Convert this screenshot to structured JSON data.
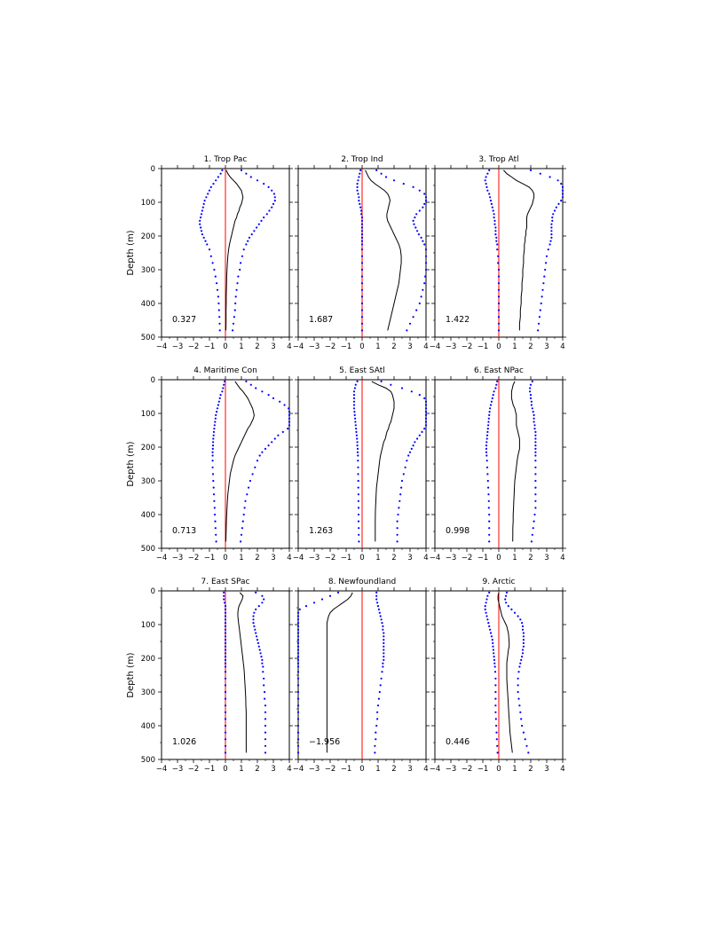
{
  "chart_data": {
    "type": "line",
    "ylabel": "Depth (m)",
    "xlim": [
      -4,
      4
    ],
    "ylim": [
      0,
      500
    ],
    "y_inverted": true,
    "x_ticks": [
      -4,
      -3,
      -2,
      -1,
      0,
      1,
      2,
      3,
      4
    ],
    "y_ticks": [
      0,
      100,
      200,
      300,
      400,
      500
    ],
    "depth": [
      5,
      15,
      25,
      35,
      45,
      55,
      65,
      75,
      85,
      95,
      105,
      115,
      125,
      135,
      145,
      155,
      165,
      175,
      185,
      195,
      205,
      215,
      225,
      240,
      260,
      280,
      300,
      320,
      340,
      360,
      380,
      400,
      420,
      440,
      460,
      480
    ],
    "panels": [
      {
        "title": "1. Trop Pac",
        "annotation": "0.327",
        "mean": [
          0.05,
          0.15,
          0.3,
          0.5,
          0.7,
          0.85,
          1.0,
          1.05,
          1.1,
          1.05,
          1.0,
          0.9,
          0.85,
          0.75,
          0.7,
          0.6,
          0.55,
          0.5,
          0.45,
          0.4,
          0.35,
          0.3,
          0.25,
          0.2,
          0.15,
          0.12,
          0.1,
          0.08,
          0.07,
          0.06,
          0.05,
          0.05,
          0.04,
          0.04,
          0.04,
          0.03
        ],
        "upper": [
          1.0,
          1.3,
          1.6,
          2.0,
          2.4,
          2.7,
          2.9,
          3.05,
          3.1,
          3.1,
          3.0,
          2.9,
          2.75,
          2.6,
          2.4,
          2.25,
          2.1,
          1.95,
          1.8,
          1.65,
          1.5,
          1.4,
          1.3,
          1.15,
          1.05,
          0.95,
          0.9,
          0.8,
          0.75,
          0.7,
          0.65,
          0.62,
          0.6,
          0.55,
          0.5,
          0.45
        ],
        "lower": [
          -0.2,
          -0.3,
          -0.45,
          -0.6,
          -0.75,
          -0.9,
          -1.0,
          -1.1,
          -1.2,
          -1.3,
          -1.35,
          -1.4,
          -1.45,
          -1.5,
          -1.55,
          -1.6,
          -1.6,
          -1.55,
          -1.5,
          -1.45,
          -1.35,
          -1.25,
          -1.15,
          -1.0,
          -0.9,
          -0.8,
          -0.7,
          -0.62,
          -0.55,
          -0.5,
          -0.45,
          -0.42,
          -0.4,
          -0.38,
          -0.36,
          -0.35
        ]
      },
      {
        "title": "2. Trop Ind",
        "annotation": "1.687",
        "mean": [
          0.2,
          0.3,
          0.4,
          0.55,
          0.8,
          1.1,
          1.4,
          1.6,
          1.7,
          1.75,
          1.7,
          1.65,
          1.6,
          1.55,
          1.55,
          1.6,
          1.7,
          1.8,
          1.9,
          2.0,
          2.1,
          2.2,
          2.3,
          2.4,
          2.45,
          2.45,
          2.4,
          2.35,
          2.3,
          2.2,
          2.1,
          2.0,
          1.9,
          1.8,
          1.7,
          1.6
        ],
        "upper": [
          0.9,
          1.2,
          1.5,
          2.0,
          2.6,
          3.2,
          3.6,
          3.9,
          4.0,
          4.0,
          3.9,
          3.8,
          3.6,
          3.4,
          3.3,
          3.2,
          3.25,
          3.35,
          3.45,
          3.55,
          3.7,
          3.8,
          3.9,
          4.0,
          4.0,
          4.0,
          4.0,
          3.95,
          3.9,
          3.8,
          3.7,
          3.6,
          3.4,
          3.2,
          3.0,
          2.8
        ],
        "lower": [
          -0.1,
          -0.15,
          -0.2,
          -0.25,
          -0.3,
          -0.3,
          -0.3,
          -0.25,
          -0.2,
          -0.2,
          -0.15,
          -0.1,
          -0.05,
          -0.05,
          0,
          0,
          0,
          0,
          0,
          0,
          0,
          0,
          0,
          0,
          0,
          0,
          0,
          0,
          0,
          0,
          0,
          0,
          0,
          0,
          0,
          0
        ]
      },
      {
        "title": "3. Trop Atl",
        "annotation": "1.422",
        "mean": [
          0.3,
          0.5,
          0.8,
          1.1,
          1.5,
          1.9,
          2.1,
          2.2,
          2.2,
          2.15,
          2.1,
          2.0,
          1.9,
          1.8,
          1.75,
          1.75,
          1.75,
          1.75,
          1.7,
          1.7,
          1.65,
          1.65,
          1.6,
          1.6,
          1.55,
          1.55,
          1.5,
          1.5,
          1.45,
          1.45,
          1.4,
          1.4,
          1.35,
          1.35,
          1.3,
          1.3
        ],
        "upper": [
          2.0,
          2.6,
          3.2,
          3.7,
          3.9,
          4.0,
          4.0,
          4.0,
          4.0,
          3.9,
          3.75,
          3.6,
          3.5,
          3.4,
          3.35,
          3.35,
          3.3,
          3.3,
          3.3,
          3.3,
          3.3,
          3.25,
          3.2,
          3.1,
          3.0,
          2.95,
          2.9,
          2.85,
          2.8,
          2.75,
          2.7,
          2.65,
          2.6,
          2.55,
          2.5,
          2.45
        ],
        "lower": [
          -0.6,
          -0.7,
          -0.8,
          -0.85,
          -0.8,
          -0.75,
          -0.7,
          -0.6,
          -0.55,
          -0.5,
          -0.45,
          -0.4,
          -0.35,
          -0.3,
          -0.3,
          -0.25,
          -0.25,
          -0.2,
          -0.2,
          -0.2,
          -0.15,
          -0.15,
          -0.1,
          -0.1,
          -0.05,
          -0.05,
          0,
          0,
          0,
          0,
          0,
          0,
          0,
          0,
          0,
          0
        ]
      },
      {
        "title": "4. Maritime Con",
        "annotation": "0.713",
        "mean": [
          0.6,
          0.75,
          0.9,
          1.1,
          1.25,
          1.4,
          1.5,
          1.6,
          1.7,
          1.75,
          1.8,
          1.75,
          1.65,
          1.55,
          1.4,
          1.3,
          1.2,
          1.1,
          1.0,
          0.9,
          0.8,
          0.7,
          0.6,
          0.5,
          0.4,
          0.3,
          0.25,
          0.2,
          0.15,
          0.12,
          0.1,
          0.08,
          0.06,
          0.05,
          0.04,
          0.03
        ],
        "upper": [
          1.3,
          1.6,
          1.9,
          2.3,
          2.7,
          3.0,
          3.4,
          3.7,
          3.95,
          4.0,
          4.0,
          4.0,
          4.0,
          4.0,
          3.9,
          3.6,
          3.3,
          3.1,
          2.9,
          2.7,
          2.5,
          2.3,
          2.15,
          2.0,
          1.85,
          1.7,
          1.55,
          1.45,
          1.35,
          1.25,
          1.2,
          1.15,
          1.1,
          1.05,
          1.0,
          0.95
        ],
        "lower": [
          -0.05,
          -0.1,
          -0.15,
          -0.2,
          -0.3,
          -0.35,
          -0.4,
          -0.45,
          -0.5,
          -0.55,
          -0.6,
          -0.62,
          -0.65,
          -0.68,
          -0.7,
          -0.72,
          -0.74,
          -0.76,
          -0.77,
          -0.78,
          -0.79,
          -0.8,
          -0.8,
          -0.8,
          -0.8,
          -0.78,
          -0.76,
          -0.74,
          -0.72,
          -0.7,
          -0.68,
          -0.66,
          -0.64,
          -0.62,
          -0.6,
          -0.58
        ]
      },
      {
        "title": "5. East SAtl",
        "annotation": "1.263",
        "mean": [
          0.6,
          1.0,
          1.5,
          1.8,
          1.9,
          1.95,
          2.0,
          2.0,
          2.0,
          1.95,
          1.9,
          1.85,
          1.8,
          1.7,
          1.65,
          1.55,
          1.5,
          1.45,
          1.35,
          1.3,
          1.25,
          1.2,
          1.15,
          1.1,
          1.05,
          1.0,
          0.95,
          0.9,
          0.88,
          0.86,
          0.84,
          0.83,
          0.82,
          0.82,
          0.82,
          0.82
        ],
        "upper": [
          1.2,
          1.8,
          2.5,
          3.1,
          3.6,
          3.9,
          4.0,
          4.0,
          4.0,
          4.0,
          4.0,
          4.0,
          4.0,
          4.0,
          3.9,
          3.75,
          3.6,
          3.45,
          3.3,
          3.2,
          3.1,
          3.0,
          2.9,
          2.8,
          2.7,
          2.6,
          2.5,
          2.45,
          2.4,
          2.35,
          2.3,
          2.25,
          2.2,
          2.2,
          2.2,
          2.2
        ],
        "lower": [
          -0.3,
          -0.4,
          -0.45,
          -0.5,
          -0.5,
          -0.5,
          -0.5,
          -0.5,
          -0.5,
          -0.48,
          -0.46,
          -0.44,
          -0.42,
          -0.4,
          -0.38,
          -0.36,
          -0.34,
          -0.32,
          -0.3,
          -0.3,
          -0.28,
          -0.28,
          -0.26,
          -0.26,
          -0.25,
          -0.25,
          -0.24,
          -0.24,
          -0.23,
          -0.23,
          -0.22,
          -0.22,
          -0.22,
          -0.21,
          -0.21,
          -0.2
        ]
      },
      {
        "title": "6. East NPac",
        "annotation": "0.998",
        "mean": [
          1.0,
          0.9,
          0.85,
          0.8,
          0.8,
          0.8,
          0.85,
          0.9,
          1.0,
          1.05,
          1.1,
          1.1,
          1.1,
          1.1,
          1.15,
          1.2,
          1.25,
          1.3,
          1.3,
          1.3,
          1.3,
          1.25,
          1.2,
          1.15,
          1.1,
          1.05,
          1.0,
          0.98,
          0.96,
          0.94,
          0.92,
          0.9,
          0.9,
          0.88,
          0.88,
          0.87
        ],
        "upper": [
          2.1,
          2.0,
          1.95,
          1.95,
          2.0,
          2.0,
          2.05,
          2.05,
          2.1,
          2.15,
          2.2,
          2.2,
          2.2,
          2.25,
          2.25,
          2.3,
          2.3,
          2.3,
          2.3,
          2.3,
          2.3,
          2.3,
          2.3,
          2.3,
          2.3,
          2.3,
          2.3,
          2.3,
          2.3,
          2.3,
          2.3,
          2.25,
          2.2,
          2.15,
          2.1,
          2.05
        ],
        "lower": [
          -0.1,
          -0.15,
          -0.2,
          -0.3,
          -0.35,
          -0.4,
          -0.45,
          -0.5,
          -0.55,
          -0.58,
          -0.6,
          -0.62,
          -0.64,
          -0.66,
          -0.68,
          -0.7,
          -0.72,
          -0.74,
          -0.76,
          -0.78,
          -0.78,
          -0.78,
          -0.76,
          -0.74,
          -0.72,
          -0.7,
          -0.68,
          -0.66,
          -0.64,
          -0.62,
          -0.62,
          -0.6,
          -0.6,
          -0.6,
          -0.6,
          -0.6
        ]
      },
      {
        "title": "7. East SPac",
        "annotation": "1.026",
        "mean": [
          0.9,
          1.1,
          1.05,
          0.95,
          0.85,
          0.8,
          0.78,
          0.78,
          0.8,
          0.82,
          0.85,
          0.88,
          0.9,
          0.93,
          0.95,
          0.98,
          1.0,
          1.03,
          1.05,
          1.08,
          1.1,
          1.12,
          1.15,
          1.18,
          1.2,
          1.23,
          1.25,
          1.27,
          1.28,
          1.3,
          1.3,
          1.3,
          1.3,
          1.3,
          1.3,
          1.3
        ],
        "upper": [
          1.9,
          2.3,
          2.4,
          2.3,
          2.1,
          1.9,
          1.8,
          1.75,
          1.75,
          1.75,
          1.8,
          1.85,
          1.9,
          1.95,
          2.0,
          2.05,
          2.1,
          2.15,
          2.2,
          2.25,
          2.3,
          2.3,
          2.35,
          2.35,
          2.4,
          2.4,
          2.45,
          2.45,
          2.5,
          2.5,
          2.5,
          2.5,
          2.5,
          2.5,
          2.5,
          2.5
        ],
        "lower": [
          -0.1,
          -0.1,
          -0.1,
          -0.05,
          0,
          0,
          0,
          0,
          0,
          0,
          0,
          0,
          0,
          0,
          0,
          0,
          0,
          0,
          0,
          0,
          0,
          0,
          0,
          0,
          0,
          0,
          0,
          0,
          0,
          0,
          0,
          0,
          0,
          0,
          0,
          0
        ]
      },
      {
        "title": "8. Newfoundland",
        "annotation": "-1.956",
        "mean": [
          -0.6,
          -0.7,
          -0.9,
          -1.2,
          -1.5,
          -1.8,
          -2.0,
          -2.1,
          -2.15,
          -2.2,
          -2.2,
          -2.2,
          -2.2,
          -2.2,
          -2.2,
          -2.2,
          -2.2,
          -2.2,
          -2.2,
          -2.2,
          -2.2,
          -2.2,
          -2.2,
          -2.2,
          -2.2,
          -2.2,
          -2.2,
          -2.2,
          -2.2,
          -2.2,
          -2.2,
          -2.2,
          -2.2,
          -2.2,
          -2.2,
          -2.2
        ],
        "upper": [
          0.9,
          0.9,
          0.9,
          0.95,
          1.0,
          1.05,
          1.1,
          1.15,
          1.2,
          1.25,
          1.3,
          1.3,
          1.35,
          1.35,
          1.35,
          1.35,
          1.35,
          1.35,
          1.35,
          1.35,
          1.35,
          1.3,
          1.3,
          1.25,
          1.2,
          1.15,
          1.1,
          1.05,
          1.0,
          0.95,
          0.95,
          0.9,
          0.85,
          0.85,
          0.8,
          0.8
        ],
        "lower": [
          -1.5,
          -2.0,
          -2.5,
          -3.0,
          -3.5,
          -3.9,
          -4.0,
          -4.0,
          -4.0,
          -4.0,
          -4.0,
          -4.0,
          -4.0,
          -4.0,
          -4.0,
          -4.0,
          -4.0,
          -4.0,
          -4.0,
          -4.0,
          -4.0,
          -4.0,
          -4.0,
          -4.0,
          -4.0,
          -4.0,
          -4.0,
          -4.0,
          -4.0,
          -4.0,
          -4.0,
          -4.0,
          -4.0,
          -4.0,
          -4.0,
          -4.0
        ]
      },
      {
        "title": "9. Arctic",
        "annotation": "0.446",
        "mean": [
          0.0,
          -0.05,
          -0.05,
          0.0,
          0.05,
          0.1,
          0.15,
          0.2,
          0.3,
          0.4,
          0.5,
          0.55,
          0.6,
          0.62,
          0.64,
          0.65,
          0.65,
          0.6,
          0.58,
          0.55,
          0.52,
          0.5,
          0.5,
          0.5,
          0.5,
          0.52,
          0.55,
          0.58,
          0.6,
          0.62,
          0.65,
          0.68,
          0.7,
          0.75,
          0.8,
          0.85
        ],
        "upper": [
          0.5,
          0.45,
          0.4,
          0.45,
          0.6,
          0.8,
          1.0,
          1.2,
          1.35,
          1.45,
          1.5,
          1.5,
          1.55,
          1.55,
          1.55,
          1.55,
          1.55,
          1.5,
          1.5,
          1.45,
          1.4,
          1.35,
          1.3,
          1.25,
          1.2,
          1.2,
          1.2,
          1.25,
          1.3,
          1.35,
          1.4,
          1.45,
          1.55,
          1.65,
          1.75,
          1.85
        ],
        "lower": [
          -0.6,
          -0.7,
          -0.75,
          -0.8,
          -0.85,
          -0.85,
          -0.8,
          -0.75,
          -0.7,
          -0.65,
          -0.6,
          -0.55,
          -0.5,
          -0.45,
          -0.4,
          -0.38,
          -0.36,
          -0.34,
          -0.32,
          -0.3,
          -0.28,
          -0.26,
          -0.24,
          -0.22,
          -0.2,
          -0.2,
          -0.2,
          -0.2,
          -0.2,
          -0.2,
          -0.18,
          -0.16,
          -0.14,
          -0.12,
          -0.1,
          -0.08
        ]
      }
    ]
  },
  "colors": {
    "mean_line": "#000000",
    "bounds_dots": "#0000ff",
    "zero_line": "#ff0000",
    "axes": "#000000"
  }
}
